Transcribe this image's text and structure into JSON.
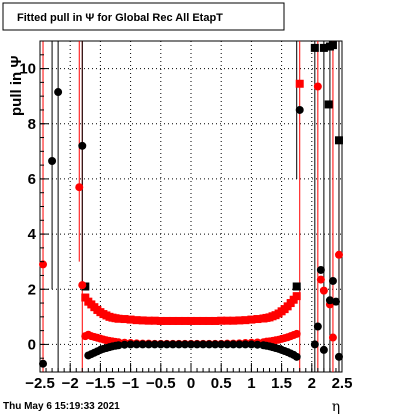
{
  "chart_data": {
    "type": "scatter",
    "title": "Fitted pull in  Ψ  for Global Rec All EtapT",
    "ylabel": "pull in Ψ",
    "xlabel": "η",
    "xlim": [
      -2.5,
      2.5
    ],
    "ylim": [
      -1.0,
      11.0
    ],
    "x_ticks": [
      "−2.5",
      "−2",
      "−1.5",
      "−1",
      "−0.5",
      "0",
      "0.5",
      "1",
      "1.5",
      "2",
      "2.5"
    ],
    "y_ticks": [
      "0",
      "2",
      "4",
      "6",
      "8",
      "10"
    ],
    "grid": true,
    "series": [
      {
        "color": "#ff0000",
        "marker": "square",
        "points": [
          [
            -1.75,
            1.7
          ],
          [
            -1.7,
            1.55
          ],
          [
            -1.65,
            1.45
          ],
          [
            -1.6,
            1.35
          ],
          [
            -1.55,
            1.25
          ],
          [
            -1.5,
            1.17
          ],
          [
            -1.45,
            1.1
          ],
          [
            -1.4,
            1.05
          ],
          [
            -1.35,
            1.0
          ],
          [
            -1.3,
            0.97
          ],
          [
            -1.25,
            0.95
          ],
          [
            -1.2,
            0.93
          ],
          [
            -1.1,
            0.92
          ],
          [
            -1.0,
            0.9
          ],
          [
            -0.9,
            0.88
          ],
          [
            -0.8,
            0.87
          ],
          [
            -0.7,
            0.86
          ],
          [
            -0.6,
            0.86
          ],
          [
            -0.5,
            0.85
          ],
          [
            -0.4,
            0.85
          ],
          [
            -0.3,
            0.85
          ],
          [
            -0.2,
            0.85
          ],
          [
            -0.1,
            0.85
          ],
          [
            0.0,
            0.85
          ],
          [
            0.1,
            0.85
          ],
          [
            0.2,
            0.85
          ],
          [
            0.3,
            0.85
          ],
          [
            0.4,
            0.85
          ],
          [
            0.5,
            0.86
          ],
          [
            0.6,
            0.86
          ],
          [
            0.7,
            0.86
          ],
          [
            0.8,
            0.87
          ],
          [
            0.9,
            0.88
          ],
          [
            1.0,
            0.9
          ],
          [
            1.1,
            0.92
          ],
          [
            1.2,
            0.94
          ],
          [
            1.25,
            0.96
          ],
          [
            1.3,
            0.98
          ],
          [
            1.35,
            1.02
          ],
          [
            1.4,
            1.06
          ],
          [
            1.45,
            1.12
          ],
          [
            1.5,
            1.2
          ],
          [
            1.55,
            1.28
          ],
          [
            1.6,
            1.38
          ],
          [
            1.65,
            1.5
          ],
          [
            1.7,
            1.62
          ],
          [
            1.75,
            1.75
          ],
          [
            1.8,
            9.45
          ]
        ]
      },
      {
        "color": "#000000",
        "marker": "square",
        "points": [
          [
            -1.75,
            2.1
          ],
          [
            1.75,
            2.1
          ],
          [
            2.05,
            10.75
          ],
          [
            2.2,
            10.75
          ],
          [
            2.28,
            8.7
          ],
          [
            2.3,
            10.8
          ],
          [
            2.35,
            10.85
          ],
          [
            2.45,
            7.4
          ]
        ]
      },
      {
        "color": "#ff0000",
        "marker": "circle",
        "points": [
          [
            -2.45,
            2.9
          ],
          [
            -1.85,
            5.7
          ],
          [
            -1.8,
            2.15
          ],
          [
            -1.75,
            0.3
          ],
          [
            -1.7,
            0.35
          ],
          [
            -1.65,
            0.3
          ],
          [
            -1.6,
            0.27
          ],
          [
            -1.55,
            0.24
          ],
          [
            -1.5,
            0.21
          ],
          [
            -1.45,
            0.18
          ],
          [
            -1.4,
            0.15
          ],
          [
            -1.35,
            0.13
          ],
          [
            -1.3,
            0.11
          ],
          [
            -1.25,
            0.09
          ],
          [
            -1.2,
            0.08
          ],
          [
            -1.1,
            0.06
          ],
          [
            -1.0,
            0.05
          ],
          [
            -0.9,
            0.04
          ],
          [
            -0.8,
            0.03
          ],
          [
            -0.7,
            0.03
          ],
          [
            -0.6,
            0.02
          ],
          [
            -0.5,
            0.02
          ],
          [
            -0.4,
            0.02
          ],
          [
            -0.3,
            0.02
          ],
          [
            -0.2,
            0.02
          ],
          [
            -0.1,
            0.02
          ],
          [
            0.0,
            0.02
          ],
          [
            0.1,
            0.02
          ],
          [
            0.2,
            0.02
          ],
          [
            0.3,
            0.02
          ],
          [
            0.4,
            0.02
          ],
          [
            0.5,
            0.02
          ],
          [
            0.6,
            0.03
          ],
          [
            0.7,
            0.03
          ],
          [
            0.8,
            0.04
          ],
          [
            0.9,
            0.05
          ],
          [
            1.0,
            0.06
          ],
          [
            1.1,
            0.07
          ],
          [
            1.2,
            0.08
          ],
          [
            1.25,
            0.1
          ],
          [
            1.3,
            0.11
          ],
          [
            1.35,
            0.13
          ],
          [
            1.4,
            0.15
          ],
          [
            1.45,
            0.17
          ],
          [
            1.5,
            0.2
          ],
          [
            1.55,
            0.23
          ],
          [
            1.6,
            0.26
          ],
          [
            1.65,
            0.3
          ],
          [
            1.7,
            0.34
          ],
          [
            1.75,
            0.38
          ],
          [
            2.1,
            9.35
          ],
          [
            2.15,
            2.35
          ],
          [
            2.2,
            1.95
          ],
          [
            2.3,
            1.45
          ],
          [
            2.35,
            0.25
          ],
          [
            2.45,
            3.25
          ]
        ]
      },
      {
        "color": "#000000",
        "marker": "circle",
        "points": [
          [
            -2.45,
            -0.7
          ],
          [
            -2.3,
            6.65
          ],
          [
            -2.2,
            9.15
          ],
          [
            -1.8,
            7.2
          ],
          [
            -1.7,
            -0.4
          ],
          [
            -1.65,
            -0.35
          ],
          [
            -1.6,
            -0.3
          ],
          [
            -1.55,
            -0.25
          ],
          [
            -1.5,
            -0.2
          ],
          [
            -1.45,
            -0.16
          ],
          [
            -1.4,
            -0.13
          ],
          [
            -1.35,
            -0.1
          ],
          [
            -1.3,
            -0.07
          ],
          [
            -1.25,
            -0.05
          ],
          [
            -1.2,
            -0.03
          ],
          [
            -1.1,
            -0.01
          ],
          [
            -1.0,
            0.0
          ],
          [
            -0.9,
            0.0
          ],
          [
            -0.8,
            0.0
          ],
          [
            -0.7,
            0.0
          ],
          [
            -0.6,
            0.0
          ],
          [
            -0.5,
            0.0
          ],
          [
            -0.4,
            0.0
          ],
          [
            -0.3,
            0.0
          ],
          [
            -0.2,
            0.0
          ],
          [
            -0.1,
            0.0
          ],
          [
            0.0,
            0.0
          ],
          [
            0.1,
            0.0
          ],
          [
            0.2,
            0.0
          ],
          [
            0.3,
            0.0
          ],
          [
            0.4,
            0.0
          ],
          [
            0.5,
            0.0
          ],
          [
            0.6,
            0.0
          ],
          [
            0.7,
            0.0
          ],
          [
            0.8,
            0.0
          ],
          [
            0.9,
            0.0
          ],
          [
            1.0,
            0.0
          ],
          [
            1.1,
            -0.01
          ],
          [
            1.2,
            -0.03
          ],
          [
            1.25,
            -0.05
          ],
          [
            1.3,
            -0.07
          ],
          [
            1.35,
            -0.1
          ],
          [
            1.4,
            -0.13
          ],
          [
            1.45,
            -0.16
          ],
          [
            1.5,
            -0.2
          ],
          [
            1.55,
            -0.24
          ],
          [
            1.6,
            -0.28
          ],
          [
            1.65,
            -0.33
          ],
          [
            1.7,
            -0.38
          ],
          [
            1.75,
            -0.45
          ],
          [
            1.8,
            8.5
          ],
          [
            2.05,
            0.0
          ],
          [
            2.1,
            0.65
          ],
          [
            2.15,
            2.7
          ],
          [
            2.2,
            -0.2
          ],
          [
            2.3,
            1.6
          ],
          [
            2.35,
            2.3
          ],
          [
            2.4,
            1.55
          ],
          [
            2.45,
            -0.45
          ]
        ]
      }
    ],
    "error_bars": [
      {
        "x": -2.45,
        "color": "#ff0000",
        "y0": -1.0,
        "y1": 11.0
      },
      {
        "x": -2.3,
        "color": "#000000",
        "y0": 2.0,
        "y1": 11.0
      },
      {
        "x": -2.2,
        "color": "#000000",
        "y0": -1.0,
        "y1": 11.0
      },
      {
        "x": -1.85,
        "color": "#ff0000",
        "y0": 3.0,
        "y1": 11.0
      },
      {
        "x": -1.8,
        "color": "#ff0000",
        "y0": -1.0,
        "y1": 11.0
      },
      {
        "x": -1.8,
        "color": "#000000",
        "y0": 2.0,
        "y1": 11.0
      },
      {
        "x": 1.75,
        "color": "#000000",
        "y0": 6.0,
        "y1": 11.0
      },
      {
        "x": 1.8,
        "color": "#ff0000",
        "y0": -1.0,
        "y1": 11.0
      },
      {
        "x": 2.05,
        "color": "#000000",
        "y0": -1.0,
        "y1": 11.0
      },
      {
        "x": 2.1,
        "color": "#ff0000",
        "y0": -1.0,
        "y1": 11.0
      },
      {
        "x": 2.2,
        "color": "#000000",
        "y0": -1.0,
        "y1": 11.0
      },
      {
        "x": 2.3,
        "color": "#000000",
        "y0": -1.0,
        "y1": 11.0
      },
      {
        "x": 2.35,
        "color": "#ff0000",
        "y0": -1.0,
        "y1": 11.0
      },
      {
        "x": 2.45,
        "color": "#ff0000",
        "y0": -1.0,
        "y1": 11.0
      },
      {
        "x": 2.45,
        "color": "#000000",
        "y0": -1.0,
        "y1": 11.0
      }
    ]
  },
  "footer": {
    "timestamp": "Thu May  6 15:19:33 2021"
  }
}
